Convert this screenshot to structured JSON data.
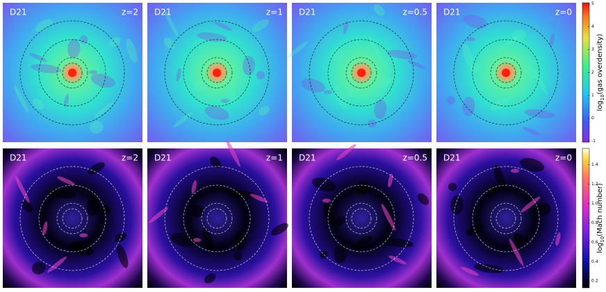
{
  "figure": {
    "rows": [
      {
        "panels": [
          {
            "label": "D21",
            "redshift": "z=2"
          },
          {
            "label": "D21",
            "redshift": "z=1"
          },
          {
            "label": "D21",
            "redshift": "z=0.5"
          },
          {
            "label": "D21",
            "redshift": "z=0"
          }
        ],
        "colorbar": {
          "label_prefix": "log",
          "label_sub": "10",
          "label_rest": "(gas overdensity)",
          "range": [
            -1.05,
            5.05
          ],
          "ticks": [
            -1,
            0,
            1,
            2,
            3,
            4,
            5
          ]
        }
      },
      {
        "panels": [
          {
            "label": "D21",
            "redshift": "z=2"
          },
          {
            "label": "D21",
            "redshift": "z=1"
          },
          {
            "label": "D21",
            "redshift": "z=0.5"
          },
          {
            "label": "D21",
            "redshift": "z=0"
          }
        ],
        "colorbar": {
          "label_prefix": "log",
          "label_sub": "10",
          "label_rest": "(Mach number)",
          "range": [
            0.13,
            1.57
          ],
          "ticks": [
            0.2,
            0.4,
            0.6,
            0.8,
            {
              "value": 1,
              "label": "1.0"
            },
            1.2,
            1.4
          ]
        }
      }
    ]
  }
}
